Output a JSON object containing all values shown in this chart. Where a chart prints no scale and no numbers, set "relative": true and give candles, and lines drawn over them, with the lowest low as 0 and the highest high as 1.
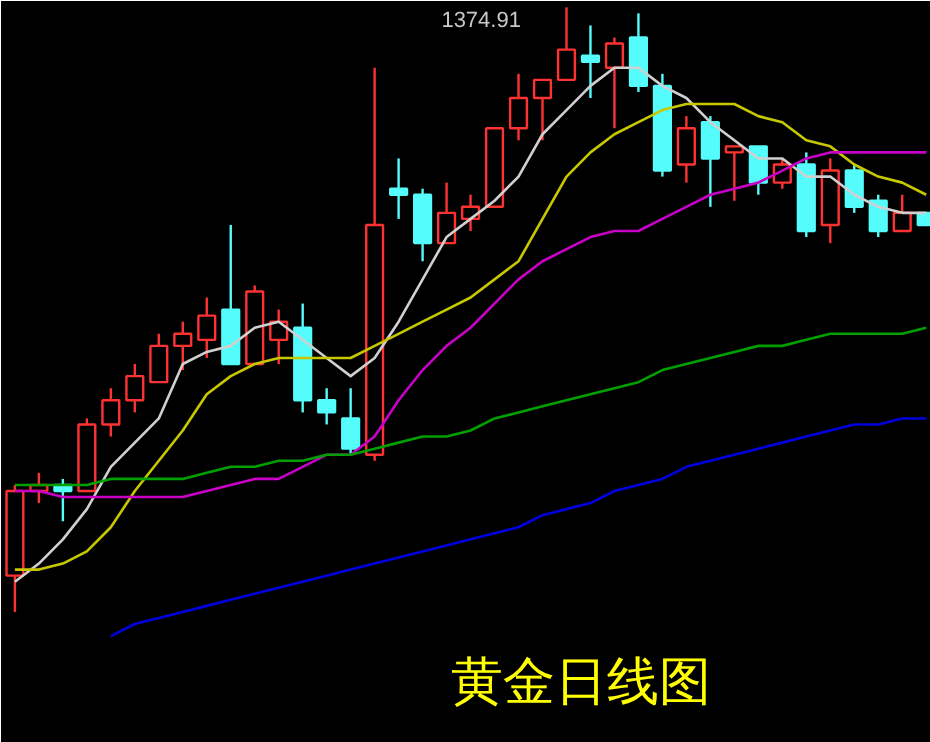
{
  "chart_data": {
    "type": "candlestick",
    "title": "黄金日线图",
    "relative": true,
    "tick_labels": false,
    "categories": [
      null,
      null,
      null,
      null,
      null,
      null,
      null,
      null,
      null,
      null,
      null,
      null,
      null,
      null,
      null,
      null,
      null,
      null,
      null,
      null,
      null,
      null,
      null,
      null,
      null,
      null,
      null,
      null,
      null,
      null,
      null,
      null,
      null,
      null,
      null,
      null,
      null,
      null,
      null
    ],
    "ohlc": [
      [
        0.06,
        0.21,
        0.0,
        0.2
      ],
      [
        0.2,
        0.23,
        0.18,
        0.21
      ],
      [
        0.21,
        0.22,
        0.15,
        0.2
      ],
      [
        0.2,
        0.32,
        0.2,
        0.31
      ],
      [
        0.31,
        0.37,
        0.29,
        0.35
      ],
      [
        0.35,
        0.41,
        0.33,
        0.39
      ],
      [
        0.38,
        0.46,
        0.38,
        0.44
      ],
      [
        0.44,
        0.48,
        0.4,
        0.46
      ],
      [
        0.45,
        0.52,
        0.42,
        0.49
      ],
      [
        0.5,
        0.64,
        0.41,
        0.41
      ],
      [
        0.41,
        0.54,
        0.41,
        0.53
      ],
      [
        0.45,
        0.5,
        0.41,
        0.48
      ],
      [
        0.47,
        0.51,
        0.33,
        0.35
      ],
      [
        0.35,
        0.37,
        0.31,
        0.33
      ],
      [
        0.32,
        0.37,
        0.26,
        0.27
      ],
      [
        0.26,
        0.9,
        0.25,
        0.64
      ],
      [
        0.7,
        0.75,
        0.65,
        0.69
      ],
      [
        0.69,
        0.7,
        0.58,
        0.61
      ],
      [
        0.61,
        0.71,
        0.61,
        0.66
      ],
      [
        0.65,
        0.69,
        0.63,
        0.67
      ],
      [
        0.67,
        0.8,
        0.67,
        0.8
      ],
      [
        0.8,
        0.89,
        0.78,
        0.85
      ],
      [
        0.85,
        0.88,
        0.78,
        0.88
      ],
      [
        0.88,
        1.0,
        0.88,
        0.93
      ],
      [
        0.92,
        0.97,
        0.85,
        0.91
      ],
      [
        0.9,
        0.95,
        0.8,
        0.94
      ],
      [
        0.95,
        0.99,
        0.86,
        0.87
      ],
      [
        0.87,
        0.89,
        0.72,
        0.73
      ],
      [
        0.74,
        0.82,
        0.71,
        0.8
      ],
      [
        0.81,
        0.82,
        0.67,
        0.75
      ],
      [
        0.76,
        0.77,
        0.68,
        0.77
      ],
      [
        0.77,
        0.77,
        0.69,
        0.71
      ],
      [
        0.71,
        0.75,
        0.7,
        0.74
      ],
      [
        0.74,
        0.76,
        0.62,
        0.63
      ],
      [
        0.64,
        0.75,
        0.61,
        0.73
      ],
      [
        0.73,
        0.74,
        0.66,
        0.67
      ],
      [
        0.68,
        0.69,
        0.62,
        0.63
      ],
      [
        0.63,
        0.69,
        0.63,
        0.66
      ],
      [
        0.66,
        0.66,
        0.64,
        0.64
      ]
    ],
    "colors": [
      "#ff3232",
      "#ff3232",
      "#54fcfc",
      "#ff3232",
      "#ff3232",
      "#ff3232",
      "#ff3232",
      "#ff3232",
      "#ff3232",
      "#54fcfc",
      "#ff3232",
      "#ff3232",
      "#54fcfc",
      "#54fcfc",
      "#54fcfc",
      "#ff3232",
      "#54fcfc",
      "#54fcfc",
      "#ff3232",
      "#ff3232",
      "#ff3232",
      "#ff3232",
      "#ff3232",
      "#ff3232",
      "#54fcfc",
      "#ff3232",
      "#54fcfc",
      "#54fcfc",
      "#ff3232",
      "#54fcfc",
      "#ff3232",
      "#54fcfc",
      "#ff3232",
      "#54fcfc",
      "#ff3232",
      "#54fcfc",
      "#54fcfc",
      "#ff3232",
      "#54fcfc"
    ],
    "series": [
      {
        "type": "line",
        "color": "#d0d0d0",
        "values": [
          0.05,
          0.08,
          0.12,
          0.17,
          0.24,
          0.28,
          0.32,
          0.41,
          0.43,
          0.44,
          0.47,
          0.48,
          0.45,
          0.42,
          0.39,
          0.42,
          0.48,
          0.55,
          0.62,
          0.65,
          0.68,
          0.72,
          0.79,
          0.83,
          0.87,
          0.9,
          0.9,
          0.87,
          0.85,
          0.81,
          0.78,
          0.75,
          0.75,
          0.72,
          0.72,
          0.69,
          0.67,
          0.66,
          0.66
        ]
      },
      {
        "type": "line",
        "color": "#c8c800",
        "values": [
          0.07,
          0.07,
          0.08,
          0.1,
          0.14,
          0.2,
          0.25,
          0.3,
          0.36,
          0.39,
          0.41,
          0.42,
          0.42,
          0.42,
          0.42,
          0.44,
          0.46,
          0.48,
          0.5,
          0.52,
          0.55,
          0.58,
          0.65,
          0.72,
          0.76,
          0.79,
          0.81,
          0.83,
          0.84,
          0.84,
          0.84,
          0.82,
          0.81,
          0.78,
          0.77,
          0.74,
          0.72,
          0.71,
          0.69
        ]
      },
      {
        "type": "line",
        "color": "#c800c8",
        "values": [
          0.2,
          0.2,
          0.19,
          0.19,
          0.19,
          0.19,
          0.19,
          0.19,
          0.2,
          0.21,
          0.22,
          0.22,
          0.24,
          0.26,
          0.26,
          0.29,
          0.35,
          0.4,
          0.44,
          0.47,
          0.51,
          0.55,
          0.58,
          0.6,
          0.62,
          0.63,
          0.63,
          0.65,
          0.67,
          0.69,
          0.7,
          0.71,
          0.73,
          0.75,
          0.76,
          0.76,
          0.76,
          0.76,
          0.76
        ]
      },
      {
        "type": "line",
        "color": "#00a000",
        "values": [
          0.21,
          0.21,
          0.21,
          0.21,
          0.22,
          0.22,
          0.22,
          0.22,
          0.23,
          0.24,
          0.24,
          0.25,
          0.25,
          0.26,
          0.26,
          0.27,
          0.28,
          0.29,
          0.29,
          0.3,
          0.32,
          0.33,
          0.34,
          0.35,
          0.36,
          0.37,
          0.38,
          0.4,
          0.41,
          0.42,
          0.43,
          0.44,
          0.44,
          0.45,
          0.46,
          0.46,
          0.46,
          0.46,
          0.47
        ]
      },
      {
        "type": "line",
        "color": "#0000e0",
        "values": [
          null,
          null,
          null,
          null,
          -0.04,
          -0.02,
          -0.01,
          0.0,
          0.01,
          0.02,
          0.03,
          0.04,
          0.05,
          0.06,
          0.07,
          0.08,
          0.09,
          0.1,
          0.11,
          0.12,
          0.13,
          0.14,
          0.16,
          0.17,
          0.18,
          0.2,
          0.21,
          0.22,
          0.24,
          0.25,
          0.26,
          0.27,
          0.28,
          0.29,
          0.3,
          0.31,
          0.31,
          0.32,
          0.32
        ]
      }
    ],
    "annotations": [
      "1374.91"
    ]
  }
}
